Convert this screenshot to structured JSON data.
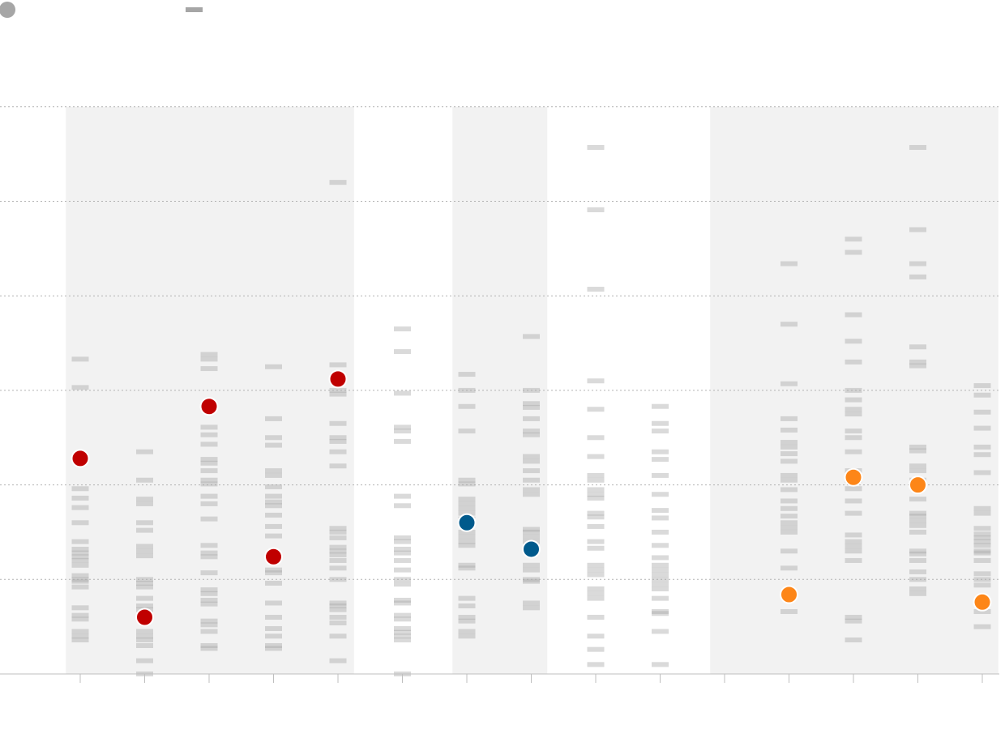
{
  "colors": {
    "dot_red": "#c00000",
    "dot_blue": "#005a8c",
    "dot_orange": "#fd8618",
    "strip_mark": "#a8a8a8",
    "band": "#f2f2f2",
    "legend_dot": "#a6a6a6",
    "legend_dash": "#a6a6a6"
  },
  "legend": [
    {
      "shape": "dot",
      "label": ""
    },
    {
      "shape": "dash",
      "label": ""
    }
  ],
  "chart_data": {
    "type": "strip-dot",
    "title": "",
    "xlabel": "",
    "ylabel": "",
    "ylim": [
      0,
      6
    ],
    "grid_y": [
      1,
      2,
      3,
      4,
      5,
      6
    ],
    "grid": true,
    "tick_labels_x": [],
    "tick_labels_y": [],
    "bands": [
      {
        "from": 0,
        "to": 4
      },
      {
        "from": 6,
        "to": 7
      },
      {
        "from": 10,
        "to": 14
      }
    ],
    "columns": [
      {
        "dot": 2.28,
        "dot_color": "red",
        "marks": [
          3.33,
          3.03,
          1.96,
          1.86,
          1.76,
          1.6,
          1.4,
          1.32,
          1.28,
          1.24,
          1.2,
          1.15,
          1.04,
          1.0,
          0.98,
          0.92,
          0.7,
          0.62,
          0.58,
          0.45,
          0.4,
          0.36
        ]
      },
      {
        "dot": 0.6,
        "dot_color": "red",
        "marks": [
          2.35,
          2.05,
          1.85,
          1.8,
          1.6,
          1.52,
          1.35,
          1.3,
          1.25,
          1.0,
          0.96,
          0.92,
          0.8,
          0.72,
          0.68,
          0.6,
          0.45,
          0.4,
          0.36,
          0.3,
          0.14,
          0.0
        ]
      },
      {
        "dot": 2.83,
        "dot_color": "red",
        "marks": [
          3.38,
          3.33,
          3.23,
          2.61,
          2.53,
          2.43,
          2.27,
          2.23,
          2.15,
          2.05,
          2.01,
          1.88,
          1.8,
          1.64,
          1.36,
          1.28,
          1.24,
          1.07,
          0.89,
          0.85,
          0.78,
          0.74,
          0.56,
          0.52,
          0.45,
          0.3,
          0.27
        ]
      },
      {
        "dot": 1.24,
        "dot_color": "red",
        "marks": [
          3.25,
          2.7,
          2.5,
          2.42,
          2.15,
          2.1,
          1.98,
          1.88,
          1.82,
          1.78,
          1.68,
          1.56,
          1.46,
          1.1,
          1.07,
          0.96,
          0.75,
          0.6,
          0.48,
          0.4,
          0.3,
          0.27
        ]
      },
      {
        "dot": 3.12,
        "dot_color": "red",
        "marks": [
          5.2,
          3.27,
          3.0,
          2.96,
          2.65,
          2.5,
          2.46,
          2.35,
          2.2,
          1.54,
          1.5,
          1.44,
          1.34,
          1.3,
          1.26,
          1.2,
          1.12,
          1.0,
          0.75,
          0.72,
          0.68,
          0.6,
          0.54,
          0.4,
          0.14
        ]
      },
      {
        "dot": null,
        "dot_color": "",
        "marks": [
          3.65,
          3.41,
          2.97,
          2.61,
          2.57,
          2.46,
          1.88,
          1.78,
          1.44,
          1.4,
          1.32,
          1.28,
          1.2,
          1.1,
          1.0,
          0.95,
          0.78,
          0.75,
          0.62,
          0.58,
          0.48,
          0.44,
          0.4,
          0.36,
          0.0
        ]
      },
      {
        "dot": 1.6,
        "dot_color": "blue",
        "marks": [
          3.17,
          3.0,
          2.83,
          2.57,
          2.05,
          2.01,
          1.85,
          1.8,
          1.75,
          1.7,
          1.64,
          1.5,
          1.45,
          1.4,
          1.36,
          1.15,
          1.12,
          0.8,
          0.72,
          0.6,
          0.56,
          0.45,
          0.4
        ]
      },
      {
        "dot": 1.32,
        "dot_color": "blue",
        "marks": [
          3.57,
          3.0,
          2.86,
          2.82,
          2.7,
          2.57,
          2.53,
          2.3,
          2.25,
          2.15,
          2.05,
          1.95,
          1.9,
          1.53,
          1.5,
          1.45,
          1.4,
          1.15,
          1.1,
          1.0,
          0.98,
          0.75,
          0.7
        ]
      },
      {
        "dot": null,
        "dot_color": "",
        "marks": [
          5.57,
          4.91,
          4.07,
          3.1,
          2.8,
          2.5,
          2.3,
          2.1,
          2.05,
          1.95,
          1.9,
          1.86,
          1.7,
          1.66,
          1.56,
          1.4,
          1.33,
          1.15,
          1.1,
          1.05,
          0.9,
          0.85,
          0.8,
          0.6,
          0.4,
          0.26,
          0.1
        ]
      },
      {
        "dot": null,
        "dot_color": "",
        "marks": [
          2.83,
          2.65,
          2.57,
          2.35,
          2.27,
          2.1,
          1.9,
          1.73,
          1.65,
          1.5,
          1.36,
          1.23,
          1.15,
          1.1,
          1.05,
          1.0,
          0.95,
          0.9,
          0.8,
          0.66,
          0.64,
          0.45,
          0.1
        ]
      },
      {
        "dot": null,
        "dot_color": "",
        "marks": []
      },
      {
        "dot": 0.84,
        "dot_color": "orange",
        "marks": [
          4.34,
          3.7,
          3.07,
          2.7,
          2.58,
          2.45,
          2.4,
          2.33,
          2.25,
          2.1,
          2.05,
          1.95,
          1.83,
          1.75,
          1.67,
          1.6,
          1.55,
          1.5,
          1.3,
          1.12,
          0.66
        ]
      },
      {
        "dot": 2.08,
        "dot_color": "orange",
        "marks": [
          4.6,
          4.46,
          3.8,
          3.52,
          3.3,
          3.0,
          2.9,
          2.8,
          2.75,
          2.57,
          2.5,
          2.35,
          2.15,
          2.05,
          1.96,
          1.83,
          1.7,
          1.47,
          1.4,
          1.35,
          1.3,
          1.2,
          0.6,
          0.56,
          0.36
        ]
      },
      {
        "dot": 2.0,
        "dot_color": "orange",
        "marks": [
          5.57,
          4.7,
          4.34,
          4.2,
          3.46,
          3.3,
          3.26,
          2.4,
          2.36,
          2.2,
          2.15,
          2.05,
          1.85,
          1.7,
          1.67,
          1.62,
          1.57,
          1.5,
          1.3,
          1.27,
          1.2,
          1.08,
          1.0,
          0.9,
          0.85
        ]
      },
      {
        "dot": 0.76,
        "dot_color": "orange",
        "marks": [
          3.05,
          2.95,
          2.77,
          2.6,
          2.4,
          2.32,
          2.13,
          1.75,
          1.7,
          1.54,
          1.48,
          1.44,
          1.4,
          1.36,
          1.3,
          1.28,
          1.2,
          1.06,
          1.0,
          0.94,
          0.66,
          0.5
        ]
      }
    ]
  }
}
